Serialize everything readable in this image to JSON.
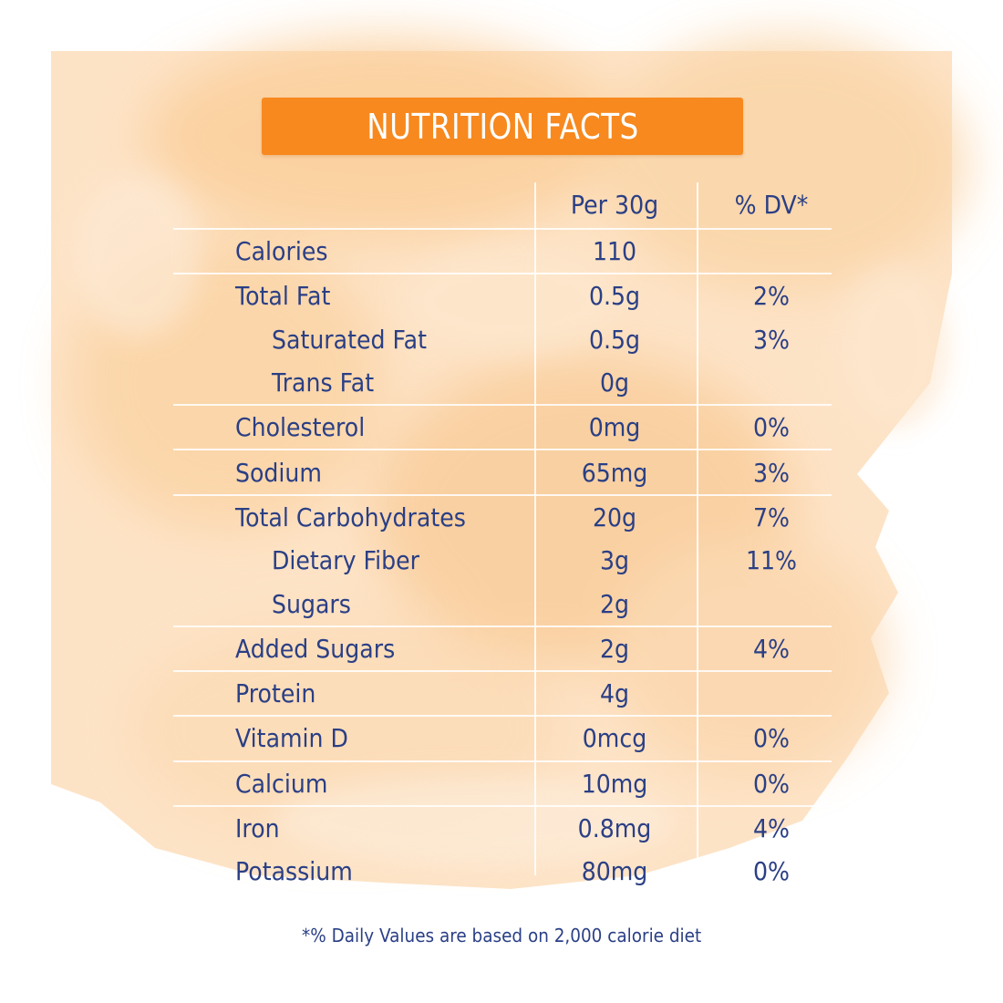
{
  "colors": {
    "banner": "#f7891f",
    "text": "#2a3f85",
    "wash": "#fbd3a6"
  },
  "title": "NUTRITION FACTS",
  "headers": {
    "amount": "Per 30g",
    "dv": "% DV*"
  },
  "rows": [
    {
      "name": "Calories",
      "amount": "110",
      "dv": ""
    },
    {
      "name": "Total Fat",
      "amount": "0.5g",
      "dv": "2%"
    },
    {
      "name": "Saturated Fat",
      "amount": "0.5g",
      "dv": "3%"
    },
    {
      "name": "Trans Fat",
      "amount": "0g",
      "dv": ""
    },
    {
      "name": "Cholesterol",
      "amount": "0mg",
      "dv": "0%"
    },
    {
      "name": "Sodium",
      "amount": "65mg",
      "dv": "3%"
    },
    {
      "name": "Total Carbohydrates",
      "amount": "20g",
      "dv": "7%"
    },
    {
      "name": "Dietary Fiber",
      "amount": "3g",
      "dv": "11%"
    },
    {
      "name": "Sugars",
      "amount": "2g",
      "dv": ""
    },
    {
      "name": "Added Sugars",
      "amount": "2g",
      "dv": "4%"
    },
    {
      "name": "Protein",
      "amount": "4g",
      "dv": ""
    },
    {
      "name": "Vitamin D",
      "amount": "0mcg",
      "dv": "0%"
    },
    {
      "name": "Calcium",
      "amount": "10mg",
      "dv": "0%"
    },
    {
      "name": "Iron",
      "amount": "0.8mg",
      "dv": "4%"
    },
    {
      "name": "Potassium",
      "amount": "80mg",
      "dv": "0%"
    }
  ],
  "footnote": "*% Daily Values are based on 2,000 calorie diet"
}
